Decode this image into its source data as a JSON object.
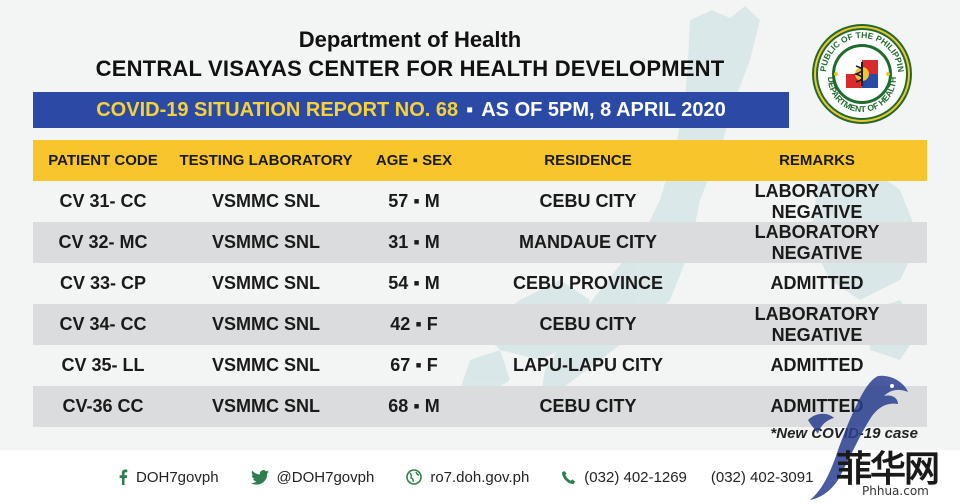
{
  "header": {
    "department": "Department of Health",
    "center": "CENTRAL VISAYAS CENTER FOR HEALTH DEVELOPMENT",
    "report_title": "COVID-19 SITUATION REPORT NO. 68",
    "report_sep": "▪",
    "report_date": "AS OF 5PM, 8 APRIL 2020"
  },
  "seal": {
    "top_text": "REPUBLIC OF THE PHILIPPINES",
    "bottom_text": "DEPARTMENT OF HEALTH",
    "icon": "doh-seal-icon"
  },
  "table": {
    "columns": [
      "PATIENT CODE",
      "TESTING LABORATORY",
      "AGE ▪ SEX",
      "RESIDENCE",
      "REMARKS"
    ],
    "rows": [
      [
        "CV 31- CC",
        "VSMMC SNL",
        "57 ▪ M",
        "CEBU CITY",
        "LABORATORY NEGATIVE"
      ],
      [
        "CV 32- MC",
        "VSMMC SNL",
        "31 ▪ M",
        "MANDAUE CITY",
        "LABORATORY NEGATIVE"
      ],
      [
        "CV 33- CP",
        "VSMMC SNL",
        "54 ▪ M",
        "CEBU PROVINCE",
        "ADMITTED"
      ],
      [
        "CV 34- CC",
        "VSMMC SNL",
        "42 ▪ F",
        "CEBU CITY",
        "LABORATORY NEGATIVE"
      ],
      [
        "CV 35- LL",
        "VSMMC SNL",
        "67 ▪ F",
        "LAPU-LAPU CITY",
        "ADMITTED"
      ],
      [
        "CV-36 CC",
        "VSMMC SNL",
        "68 ▪ M",
        "CEBU CITY",
        "ADMITTED"
      ]
    ]
  },
  "note": "*New COVID-19 case",
  "footer": {
    "facebook": "DOH7govph",
    "twitter": "@DOH7govph",
    "website": "ro7.doh.gov.ph",
    "phone1": "(032) 402-1269",
    "phone2": "(032) 402-3091"
  },
  "watermark": {
    "text": "菲华网",
    "url": "Phhua.com"
  },
  "colors": {
    "report_bar": "#2b4aa6",
    "report_title": "#f7d13a",
    "table_header": "#f8c62c",
    "row_alt": "#dadcdd",
    "icon_green": "#2e7d4f"
  }
}
